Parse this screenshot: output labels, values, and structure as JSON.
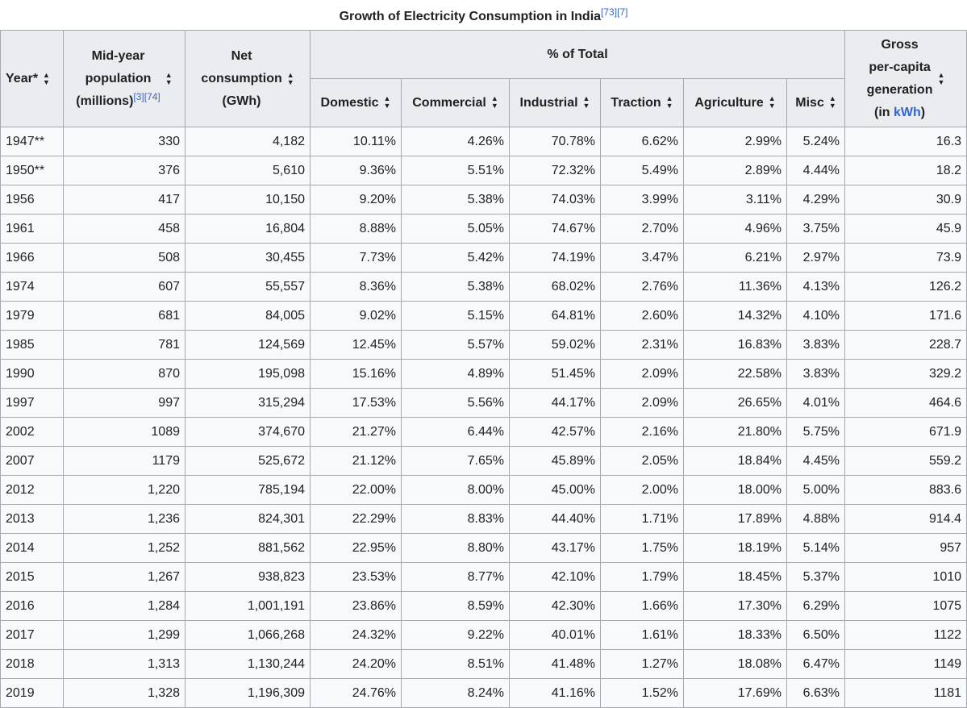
{
  "caption": {
    "title": "Growth of Electricity Consumption in India",
    "refs": "[73][7]"
  },
  "headers": {
    "year": "Year*",
    "population_l1": "Mid-year",
    "population_l2": "population",
    "population_l3": "(millions)",
    "population_refs": "[3][74]",
    "net_l1": "Net",
    "net_l2": "consumption",
    "net_l3": "(GWh)",
    "pct_total": "% of Total",
    "domestic": "Domestic",
    "commercial": "Commercial",
    "industrial": "Industrial",
    "traction": "Traction",
    "agriculture": "Agriculture",
    "misc": "Misc",
    "gross_l1": "Gross",
    "gross_l2": "per-capita",
    "gross_l3": "generation",
    "gross_l4_pre": "(in ",
    "gross_l4_link": "kWh",
    "gross_l4_post": ")"
  },
  "rows": [
    [
      "1947**",
      "330",
      "4,182",
      "10.11%",
      "4.26%",
      "70.78%",
      "6.62%",
      "2.99%",
      "5.24%",
      "16.3"
    ],
    [
      "1950**",
      "376",
      "5,610",
      "9.36%",
      "5.51%",
      "72.32%",
      "5.49%",
      "2.89%",
      "4.44%",
      "18.2"
    ],
    [
      "1956",
      "417",
      "10,150",
      "9.20%",
      "5.38%",
      "74.03%",
      "3.99%",
      "3.11%",
      "4.29%",
      "30.9"
    ],
    [
      "1961",
      "458",
      "16,804",
      "8.88%",
      "5.05%",
      "74.67%",
      "2.70%",
      "4.96%",
      "3.75%",
      "45.9"
    ],
    [
      "1966",
      "508",
      "30,455",
      "7.73%",
      "5.42%",
      "74.19%",
      "3.47%",
      "6.21%",
      "2.97%",
      "73.9"
    ],
    [
      "1974",
      "607",
      "55,557",
      "8.36%",
      "5.38%",
      "68.02%",
      "2.76%",
      "11.36%",
      "4.13%",
      "126.2"
    ],
    [
      "1979",
      "681",
      "84,005",
      "9.02%",
      "5.15%",
      "64.81%",
      "2.60%",
      "14.32%",
      "4.10%",
      "171.6"
    ],
    [
      "1985",
      "781",
      "124,569",
      "12.45%",
      "5.57%",
      "59.02%",
      "2.31%",
      "16.83%",
      "3.83%",
      "228.7"
    ],
    [
      "1990",
      "870",
      "195,098",
      "15.16%",
      "4.89%",
      "51.45%",
      "2.09%",
      "22.58%",
      "3.83%",
      "329.2"
    ],
    [
      "1997",
      "997",
      "315,294",
      "17.53%",
      "5.56%",
      "44.17%",
      "2.09%",
      "26.65%",
      "4.01%",
      "464.6"
    ],
    [
      "2002",
      "1089",
      "374,670",
      "21.27%",
      "6.44%",
      "42.57%",
      "2.16%",
      "21.80%",
      "5.75%",
      "671.9"
    ],
    [
      "2007",
      "1179",
      "525,672",
      "21.12%",
      "7.65%",
      "45.89%",
      "2.05%",
      "18.84%",
      "4.45%",
      "559.2"
    ],
    [
      "2012",
      "1,220",
      "785,194",
      "22.00%",
      "8.00%",
      "45.00%",
      "2.00%",
      "18.00%",
      "5.00%",
      "883.6"
    ],
    [
      "2013",
      "1,236",
      "824,301",
      "22.29%",
      "8.83%",
      "44.40%",
      "1.71%",
      "17.89%",
      "4.88%",
      "914.4"
    ],
    [
      "2014",
      "1,252",
      "881,562",
      "22.95%",
      "8.80%",
      "43.17%",
      "1.75%",
      "18.19%",
      "5.14%",
      "957"
    ],
    [
      "2015",
      "1,267",
      "938,823",
      "23.53%",
      "8.77%",
      "42.10%",
      "1.79%",
      "18.45%",
      "5.37%",
      "1010"
    ],
    [
      "2016",
      "1,284",
      "1,001,191",
      "23.86%",
      "8.59%",
      "42.30%",
      "1.66%",
      "17.30%",
      "6.29%",
      "1075"
    ],
    [
      "2017",
      "1,299",
      "1,066,268",
      "24.32%",
      "9.22%",
      "40.01%",
      "1.61%",
      "18.33%",
      "6.50%",
      "1122"
    ],
    [
      "2018",
      "1,313",
      "1,130,244",
      "24.20%",
      "8.51%",
      "41.48%",
      "1.27%",
      "18.08%",
      "6.47%",
      "1149"
    ],
    [
      "2019",
      "1,328",
      "1,196,309",
      "24.76%",
      "8.24%",
      "41.16%",
      "1.52%",
      "17.69%",
      "6.63%",
      "1181"
    ]
  ]
}
